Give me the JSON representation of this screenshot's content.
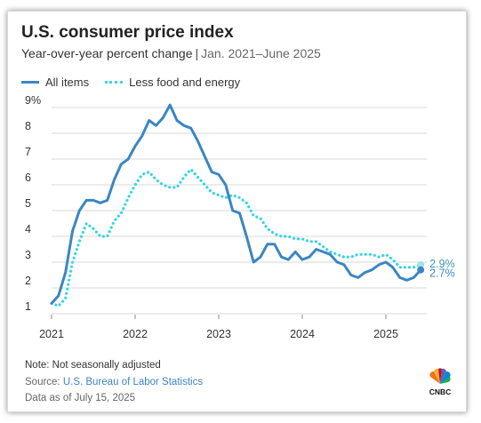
{
  "title": "U.S. consumer price index",
  "subtitle": "Year-over-year percent change",
  "subtitle_sep": "|",
  "subtitle_dates": "Jan. 2021–June 2025",
  "legend": {
    "all": "All items",
    "core": "Less food and energy"
  },
  "note": "Note: Not seasonally adjusted",
  "source_prefix": "Source: ",
  "source_link": "U.S. Bureau of Labor Statistics",
  "data_as_of": "Data as of July 15, 2025",
  "logo_text": "CNBC",
  "colors": {
    "all": "#3b86c3",
    "core": "#38d6e0",
    "grid": "#d8d8d8",
    "labelAll": "#3b86c3",
    "labelCore": "#3a9ab0"
  },
  "chart_data": {
    "type": "line",
    "x": [
      "2021-01",
      "2021-02",
      "2021-03",
      "2021-04",
      "2021-05",
      "2021-06",
      "2021-07",
      "2021-08",
      "2021-09",
      "2021-10",
      "2021-11",
      "2021-12",
      "2022-01",
      "2022-02",
      "2022-03",
      "2022-04",
      "2022-05",
      "2022-06",
      "2022-07",
      "2022-08",
      "2022-09",
      "2022-10",
      "2022-11",
      "2022-12",
      "2023-01",
      "2023-02",
      "2023-03",
      "2023-04",
      "2023-05",
      "2023-06",
      "2023-07",
      "2023-08",
      "2023-09",
      "2023-10",
      "2023-11",
      "2023-12",
      "2024-01",
      "2024-02",
      "2024-03",
      "2024-04",
      "2024-05",
      "2024-06",
      "2024-07",
      "2024-08",
      "2024-09",
      "2024-10",
      "2024-11",
      "2024-12",
      "2025-01",
      "2025-02",
      "2025-03",
      "2025-04",
      "2025-05",
      "2025-06"
    ],
    "series": [
      {
        "name": "All items",
        "key": "all",
        "style": "solid",
        "values": [
          1.4,
          1.7,
          2.6,
          4.2,
          5.0,
          5.4,
          5.4,
          5.3,
          5.4,
          6.2,
          6.8,
          7.0,
          7.5,
          7.9,
          8.5,
          8.3,
          8.6,
          9.1,
          8.5,
          8.3,
          8.2,
          7.7,
          7.1,
          6.5,
          6.4,
          6.0,
          5.0,
          4.9,
          4.0,
          3.0,
          3.2,
          3.7,
          3.7,
          3.2,
          3.1,
          3.4,
          3.1,
          3.2,
          3.5,
          3.4,
          3.3,
          3.0,
          2.9,
          2.5,
          2.4,
          2.6,
          2.7,
          2.9,
          3.0,
          2.8,
          2.4,
          2.3,
          2.4,
          2.7
        ]
      },
      {
        "name": "Less food and energy",
        "key": "core",
        "style": "dotted",
        "values": [
          1.4,
          1.3,
          1.6,
          3.0,
          3.8,
          4.5,
          4.3,
          4.0,
          4.0,
          4.6,
          4.9,
          5.5,
          6.0,
          6.4,
          6.5,
          6.2,
          6.0,
          5.9,
          5.9,
          6.3,
          6.6,
          6.3,
          6.0,
          5.7,
          5.6,
          5.5,
          5.6,
          5.5,
          5.3,
          4.8,
          4.7,
          4.3,
          4.1,
          4.0,
          4.0,
          3.9,
          3.9,
          3.8,
          3.8,
          3.6,
          3.4,
          3.3,
          3.2,
          3.2,
          3.3,
          3.3,
          3.3,
          3.2,
          3.3,
          3.1,
          2.8,
          2.8,
          2.8,
          2.9
        ]
      }
    ],
    "end_labels": {
      "all": "2.7%",
      "core": "2.9%"
    },
    "x_tick_labels": [
      "2021",
      "2022",
      "2023",
      "2024",
      "2025"
    ],
    "y_tick_labels": [
      "1",
      "2",
      "3",
      "4",
      "5",
      "6",
      "7",
      "8",
      "9%"
    ],
    "y_ticks": [
      1,
      2,
      3,
      4,
      5,
      6,
      7,
      8,
      9
    ],
    "ylim": [
      1,
      9
    ],
    "grid": "horizontal",
    "legend_position": "top-left"
  }
}
